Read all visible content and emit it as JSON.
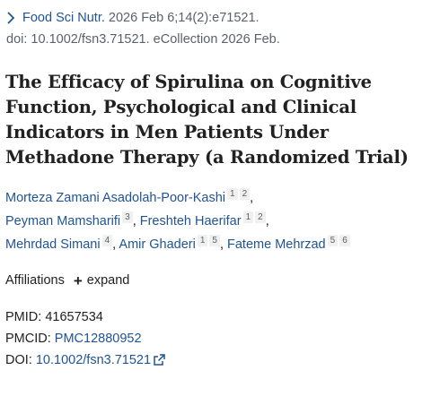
{
  "citation": {
    "journal": "Food Sci Nutr.",
    "date_volume": " 2026 Feb 6;14(2):e71521.",
    "doi_line": "doi: 10.1002/fsn3.71521. eCollection 2026 Feb."
  },
  "article": {
    "title": "The Efficacy of Spirulina on Cognitive Function, Psychological and Clinical Indicators in Men Patients Under Methadone Therapy (a Randomized Trial)"
  },
  "authors": [
    {
      "name": "Morteza Zamani Asadolah-Poor-Kashi",
      "affs": [
        "1",
        "2"
      ]
    },
    {
      "name": "Peyman Mamsharifi",
      "affs": [
        "3"
      ]
    },
    {
      "name": "Freshteh Haerifar",
      "affs": [
        "1",
        "2"
      ]
    },
    {
      "name": "Mehrdad Simani",
      "affs": [
        "4"
      ]
    },
    {
      "name": "Amir Ghaderi",
      "affs": [
        "1",
        "5"
      ]
    },
    {
      "name": "Fateme Mehrzad",
      "affs": [
        "5",
        "6"
      ]
    }
  ],
  "affiliations": {
    "label": "Affiliations",
    "expand_label": "expand"
  },
  "identifiers": {
    "pmid_label": "PMID:",
    "pmid": "41657534",
    "pmcid_label": "PMCID:",
    "pmcid": "PMC12880952",
    "doi_label": "DOI:",
    "doi": "10.1002/fsn3.71521"
  },
  "colors": {
    "link": "#205493",
    "text": "#212121",
    "muted": "#5b616b",
    "badge_bg": "#f0f0f0"
  },
  "icons": {
    "citation_toggle": "chevron-right-icon",
    "expand": "plus-icon",
    "external": "external-link-icon"
  }
}
